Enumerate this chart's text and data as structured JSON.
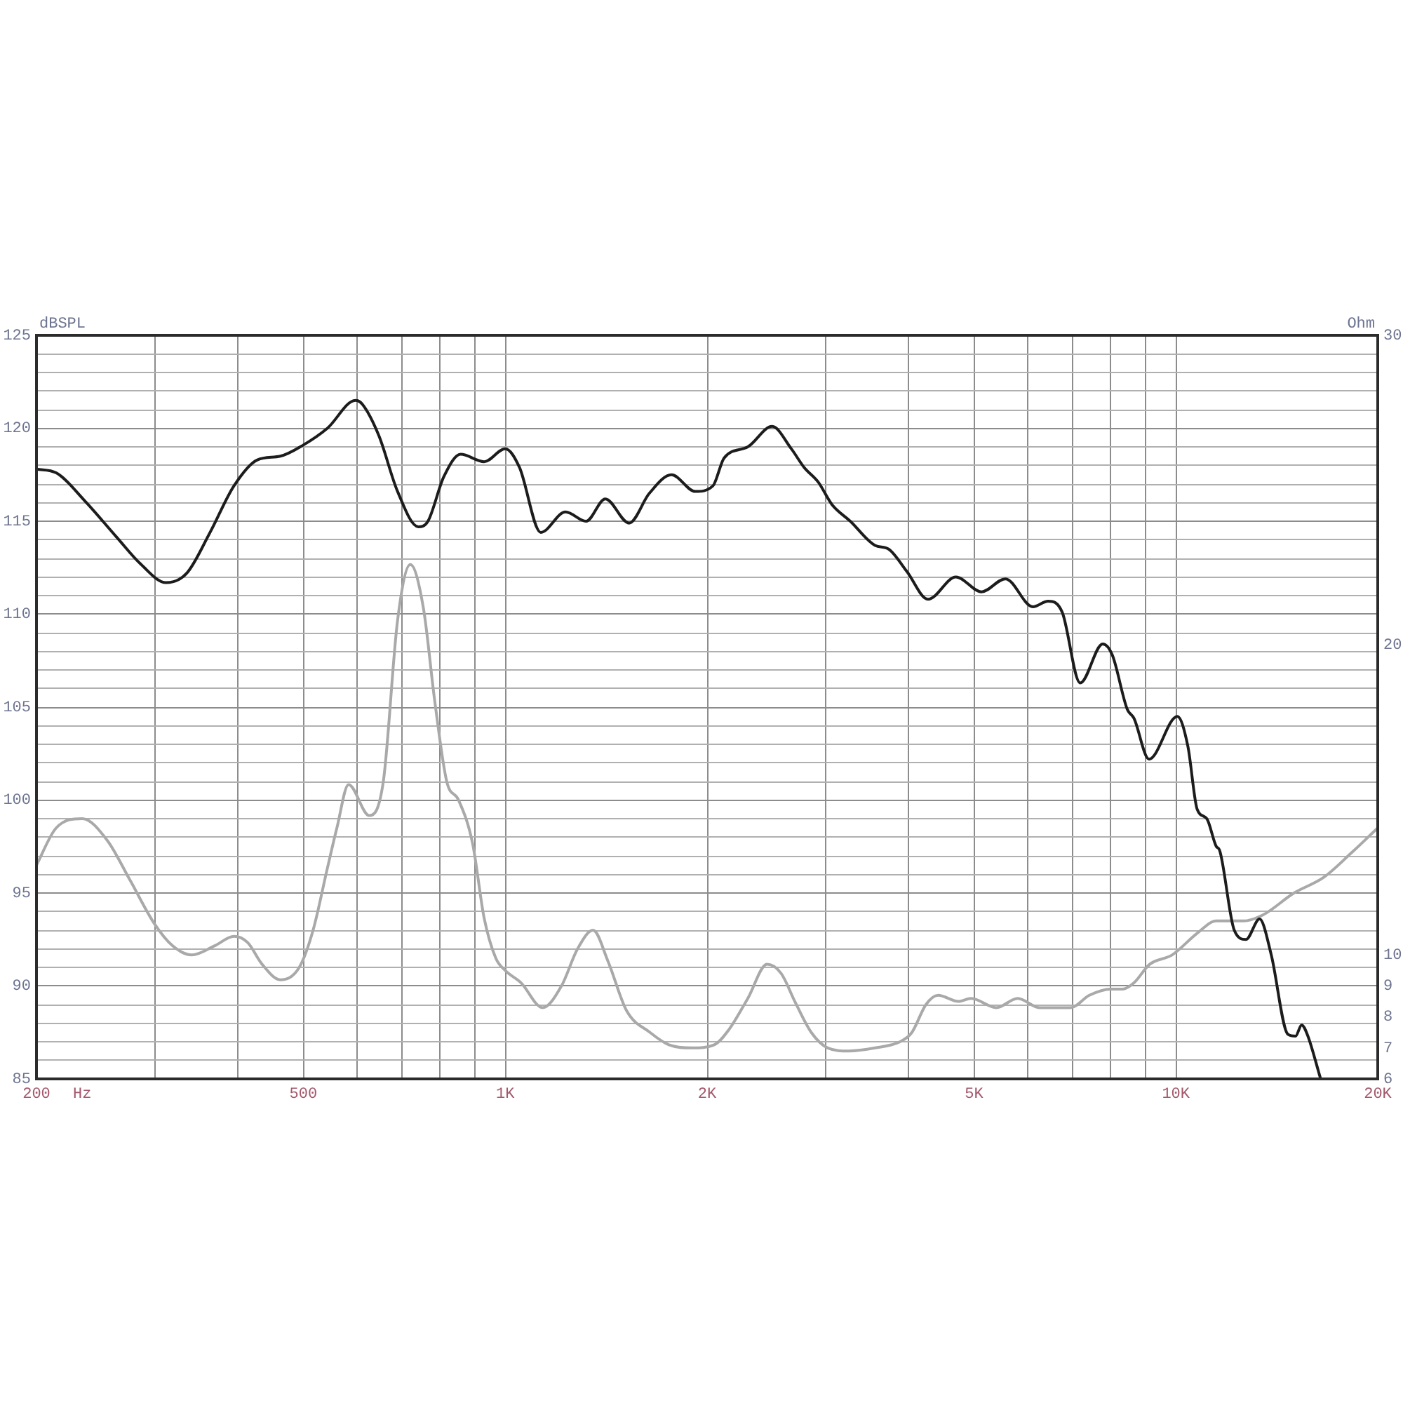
{
  "chart_data": {
    "type": "line",
    "xlabel": "Hz",
    "ylabel": "dBSPL",
    "y2label": "Ohm",
    "log": "x",
    "grid": true,
    "xlim": [
      200,
      20000
    ],
    "xticks": [
      200,
      {
        "value": 300,
        "label": null
      },
      {
        "value": 400,
        "label": null
      },
      500,
      {
        "value": 600,
        "label": null
      },
      {
        "value": 700,
        "label": null
      },
      {
        "value": 800,
        "label": null
      },
      {
        "value": 900,
        "label": null
      },
      {
        "value": 1000,
        "label": "1K"
      },
      {
        "value": 2000,
        "label": "2K"
      },
      {
        "value": 3000,
        "label": null
      },
      {
        "value": 4000,
        "label": null
      },
      {
        "value": 5000,
        "label": "5K"
      },
      {
        "value": 6000,
        "label": null
      },
      {
        "value": 7000,
        "label": null
      },
      {
        "value": 8000,
        "label": null
      },
      {
        "value": 9000,
        "label": null
      },
      {
        "value": 10000,
        "label": "10K"
      },
      {
        "value": 20000,
        "label": "20K"
      }
    ],
    "ylim": [
      85,
      125
    ],
    "yticks": [
      85,
      {
        "value": 86,
        "label": null
      },
      {
        "value": 87,
        "label": null
      },
      {
        "value": 88,
        "label": null
      },
      {
        "value": 89,
        "label": null
      },
      90,
      {
        "value": 91,
        "label": null
      },
      {
        "value": 92,
        "label": null
      },
      {
        "value": 93,
        "label": null
      },
      {
        "value": 94,
        "label": null
      },
      95,
      {
        "value": 96,
        "label": null
      },
      {
        "value": 97,
        "label": null
      },
      {
        "value": 98,
        "label": null
      },
      {
        "value": 99,
        "label": null
      },
      100,
      {
        "value": 101,
        "label": null
      },
      {
        "value": 102,
        "label": null
      },
      {
        "value": 103,
        "label": null
      },
      {
        "value": 104,
        "label": null
      },
      105,
      {
        "value": 106,
        "label": null
      },
      {
        "value": 107,
        "label": null
      },
      {
        "value": 108,
        "label": null
      },
      {
        "value": 109,
        "label": null
      },
      110,
      {
        "value": 111,
        "label": null
      },
      {
        "value": 112,
        "label": null
      },
      {
        "value": 113,
        "label": null
      },
      {
        "value": 114,
        "label": null
      },
      115,
      {
        "value": 116,
        "label": null
      },
      {
        "value": 117,
        "label": null
      },
      {
        "value": 118,
        "label": null
      },
      {
        "value": 119,
        "label": null
      },
      120,
      {
        "value": 121,
        "label": null
      },
      {
        "value": 122,
        "label": null
      },
      {
        "value": 123,
        "label": null
      },
      {
        "value": 124,
        "label": null
      },
      125
    ],
    "y2lim": [
      6,
      30
    ],
    "y2ticks": [
      6,
      7,
      8,
      9,
      10,
      20,
      30
    ],
    "series": [
      {
        "color": "#1c1c1c",
        "x": [
          200,
          214,
          236,
          264,
          286,
          312,
          335,
          363,
          394,
          427,
          462,
          500,
          543,
          598,
          612,
          648,
          691,
          742,
          767,
          810,
          858,
          930,
          1000,
          1050,
          1130,
          1230,
          1320,
          1410,
          1530,
          1640,
          1770,
          1920,
          2040,
          2120,
          2300,
          2500,
          2670,
          2790,
          2930,
          3070,
          3270,
          3560,
          3730,
          3970,
          4270,
          4700,
          5130,
          5570,
          6120,
          6450,
          6770,
          7200,
          7780,
          8040,
          8460,
          8660,
          9120,
          10050,
          10420,
          10760,
          11120,
          11490,
          11620,
          12220,
          12720,
          13330,
          13870,
          14690,
          15080,
          15400,
          15700,
          16440
        ],
        "values": [
          117.8,
          117.6,
          116.1,
          114.1,
          112.7,
          111.7,
          112.2,
          114.4,
          116.9,
          118.3,
          118.5,
          119.1,
          120.0,
          121.5,
          121.3,
          119.6,
          116.6,
          114.7,
          115.0,
          117.4,
          118.6,
          118.2,
          118.9,
          117.9,
          114.4,
          115.5,
          115.0,
          116.2,
          114.9,
          116.5,
          117.5,
          116.6,
          116.9,
          118.4,
          119.0,
          120.1,
          118.9,
          117.9,
          117.1,
          115.9,
          115.0,
          113.7,
          113.5,
          112.3,
          110.8,
          112.0,
          111.2,
          111.9,
          110.4,
          110.7,
          110.1,
          106.3,
          108.4,
          107.8,
          104.9,
          104.4,
          102.2,
          104.5,
          102.9,
          99.5,
          99.0,
          97.5,
          97.3,
          93.0,
          92.5,
          93.6,
          91.7,
          87.4,
          87.3,
          87.9,
          87.4,
          85.0
        ]
      },
      {
        "color": "#a9a9a9",
        "axis": "y2",
        "x": [
          200,
          214,
          234,
          255,
          276,
          300,
          319,
          341,
          369,
          394,
          413,
          434,
          462,
          493,
          517,
          543,
          561,
          584,
          627,
          658,
          691,
          722,
          755,
          785,
          818,
          852,
          894,
          930,
          968,
          1000,
          1056,
          1137,
          1213,
          1282,
          1352,
          1423,
          1517,
          1644,
          1754,
          1900,
          2050,
          2157,
          2300,
          2457,
          2580,
          2703,
          2860,
          3026,
          3255,
          3560,
          3880,
          4040,
          4240,
          4420,
          4740,
          4950,
          5400,
          5810,
          6260,
          6970,
          7430,
          8000,
          8340,
          8660,
          9140,
          9870,
          10760,
          11490,
          12620,
          13500,
          15000,
          16600,
          18280,
          20000
        ],
        "values": [
          12.9,
          14.1,
          14.4,
          13.7,
          12.4,
          11.0,
          10.3,
          10.0,
          10.3,
          10.6,
          10.4,
          9.7,
          9.2,
          9.6,
          10.8,
          12.8,
          14.1,
          15.5,
          14.5,
          15.6,
          20.8,
          22.6,
          21.2,
          18.2,
          15.6,
          15.0,
          13.6,
          11.2,
          9.9,
          9.5,
          9.1,
          8.3,
          9.0,
          10.2,
          10.8,
          9.8,
          8.2,
          7.5,
          7.1,
          7.0,
          7.1,
          7.6,
          8.6,
          9.7,
          9.4,
          8.5,
          7.5,
          7.0,
          6.9,
          7.0,
          7.2,
          7.5,
          8.4,
          8.7,
          8.5,
          8.6,
          8.3,
          8.6,
          8.3,
          8.3,
          8.7,
          8.9,
          8.9,
          9.1,
          9.7,
          10.0,
          10.7,
          11.1,
          11.1,
          11.3,
          12.0,
          12.5,
          13.3,
          14.1
        ]
      }
    ]
  }
}
